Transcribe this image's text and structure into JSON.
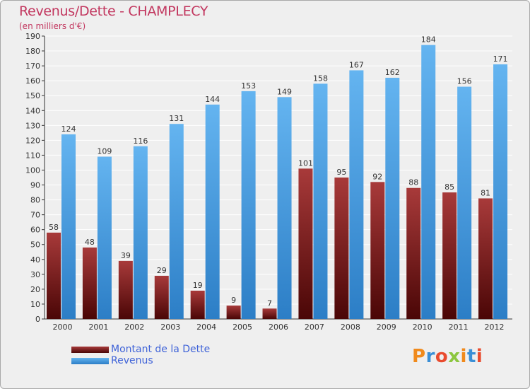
{
  "chart_data": {
    "type": "bar",
    "title": "Revenus/Dette - CHAMPLECY",
    "subtitle": "(en milliers d'€)",
    "categories": [
      "2000",
      "2001",
      "2002",
      "2003",
      "2004",
      "2005",
      "2006",
      "2007",
      "2008",
      "2009",
      "2010",
      "2011",
      "2012"
    ],
    "series": [
      {
        "name": "Montant de la Dette",
        "color": "#7a1a1a",
        "values": [
          58,
          48,
          39,
          29,
          19,
          9,
          7,
          101,
          95,
          92,
          88,
          85,
          81
        ]
      },
      {
        "name": "Revenus",
        "color": "#4d9fe0",
        "values": [
          124,
          109,
          116,
          131,
          144,
          153,
          149,
          158,
          167,
          162,
          184,
          156,
          171
        ]
      }
    ],
    "ylim": [
      0,
      190
    ],
    "ytick_step": 10,
    "grid": true,
    "legend_position": "bottom-left"
  },
  "logo": {
    "letters": [
      "P",
      "r",
      "o",
      "x",
      "i",
      "t",
      "i"
    ],
    "colors": [
      "#f08a1c",
      "#3a8fd6",
      "#e94b2e",
      "#8cc63f",
      "#f08a1c",
      "#3a8fd6",
      "#e94b2e"
    ]
  },
  "colors": {
    "title": "#c2375f",
    "legend_text": "#3f63d8",
    "background": "#efefef",
    "grid": "#ffffff"
  }
}
